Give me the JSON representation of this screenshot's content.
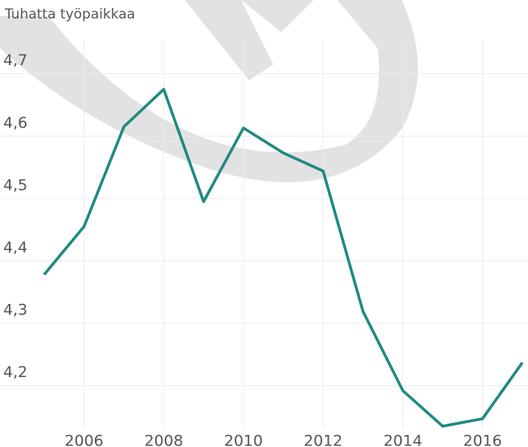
{
  "chart_data": {
    "type": "line",
    "title": "Tuhatta työpaikkaa",
    "x": [
      2005,
      2006,
      2007,
      2008,
      2009,
      2010,
      2011,
      2012,
      2013,
      2014,
      2015,
      2016,
      2017
    ],
    "series": [
      {
        "name": "Tuhatta työpaikkaa",
        "color": "#1e8a80",
        "values": [
          4.378,
          4.455,
          4.615,
          4.675,
          4.495,
          4.613,
          4.573,
          4.544,
          4.319,
          4.192,
          4.135,
          4.147,
          4.237
        ]
      }
    ],
    "xlim": [
      2005,
      2017
    ],
    "xticks": [
      2006,
      2008,
      2010,
      2012,
      2014,
      2016
    ],
    "ylim": [
      4.13,
      4.755
    ],
    "yticks": [
      {
        "value": 4.2,
        "label": "4,2"
      },
      {
        "value": 4.3,
        "label": "4,3"
      },
      {
        "value": 4.4,
        "label": "4,4"
      },
      {
        "value": 4.5,
        "label": "4,5"
      },
      {
        "value": 4.6,
        "label": "4,6"
      },
      {
        "value": 4.7,
        "label": "4,7"
      }
    ],
    "grid": true
  }
}
